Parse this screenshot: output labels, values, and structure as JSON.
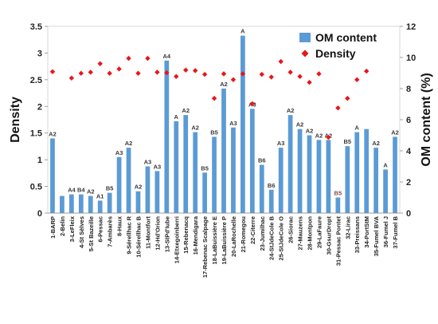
{
  "chart_data": {
    "type": "bar",
    "title": "",
    "ylabel": "Density",
    "y2label": "OM content (%)",
    "ylim": [
      0,
      3.5
    ],
    "y2lim": [
      0,
      12
    ],
    "yticks": [
      "0",
      "0.5",
      "1",
      "1.5",
      "2",
      "2.5",
      "3",
      "3.5"
    ],
    "y2ticks": [
      "0",
      "2",
      "4",
      "6",
      "8",
      "10",
      "12"
    ],
    "legend_position": "top-right",
    "colors": {
      "bar": "#5b9bd5",
      "density": "#e8161b",
      "bar_label": "#3a3a3a",
      "b5_red_label": "#8c4a4a"
    },
    "categories": [
      "1-BARP",
      "2-Belin",
      "3-LeFleix",
      "4-St Sèlves",
      "5-St Bazeille",
      "6-Pessac",
      "7-Ambarès",
      "8-Haux",
      "9-Sérellhac R",
      "10-Sérellhac B",
      "11-Montfort",
      "12-Hd'Orion",
      "13-StPd'Iube",
      "14-Etxegoinberri",
      "15-Rebenacq",
      "16-Mendigara",
      "17-Rebenac Scalpage",
      "18-LaBuissière E",
      "19-LaBuissière P",
      "20-LaRochelle",
      "21-Romegou",
      "22-Citerre",
      "23-Jumilhac",
      "24-StJdeCole B",
      "25-StJdeCole O",
      "26-Siorac",
      "27-Mauzens",
      "28-Montpon",
      "29-LaFaure",
      "30-GsurDropt",
      "31-Pessac Pontet",
      "32-Lirac",
      "33-Preissans",
      "34-PortStM",
      "35-Fumel BVA",
      "36-Fumel J",
      "37-Fumel B"
    ],
    "series": [
      {
        "name": "OM content",
        "axis": "right",
        "values": [
          4.8,
          1.1,
          1.2,
          1.2,
          1.1,
          0.8,
          1.3,
          3.6,
          4.2,
          1.4,
          3.0,
          2.7,
          9.8,
          5.9,
          6.3,
          5.2,
          2.6,
          4.9,
          8.0,
          5.5,
          11.4,
          6.7,
          3.1,
          1.5,
          4.2,
          6.3,
          5.4,
          5.0,
          4.7,
          4.7,
          1.0,
          4.3,
          5.2,
          5.4,
          4.2,
          2.8,
          4.9
        ]
      },
      {
        "name": "Density",
        "axis": "left",
        "values": [
          2.65,
          null,
          2.53,
          2.62,
          2.64,
          2.8,
          2.62,
          2.7,
          2.9,
          2.62,
          2.9,
          2.64,
          2.63,
          2.56,
          2.68,
          2.67,
          2.6,
          2.15,
          2.61,
          2.5,
          2.61,
          2.05,
          2.6,
          2.55,
          2.84,
          2.64,
          2.56,
          2.45,
          2.61,
          1.42,
          1.97,
          2.15,
          2.5,
          2.66,
          null,
          null,
          null
        ]
      }
    ],
    "bar_labels": [
      "A2",
      "",
      "A4",
      "B4",
      "A2",
      "A1",
      "B5",
      "A3",
      "A2",
      "A2",
      "A3",
      "A3",
      "A4",
      "A",
      "A2",
      "A2",
      "B5",
      "B5",
      "A2",
      "A3",
      "A",
      "A3",
      "B6",
      "B6",
      "A3",
      "A2",
      "A2",
      "A2",
      "A2",
      "A2",
      "B5",
      "B5",
      "A",
      "",
      "A2",
      "A",
      "A2"
    ]
  }
}
